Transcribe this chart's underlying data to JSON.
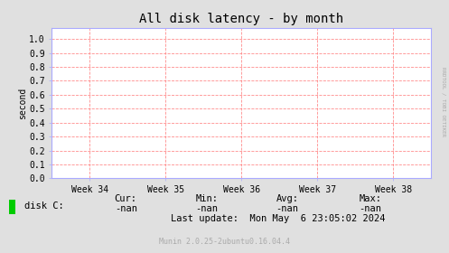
{
  "title": "All disk latency - by month",
  "ylabel": "second",
  "xtick_labels": [
    "Week 34",
    "Week 35",
    "Week 36",
    "Week 37",
    "Week 38"
  ],
  "ytick_values": [
    0.0,
    0.1,
    0.2,
    0.3,
    0.4,
    0.5,
    0.6,
    0.7,
    0.8,
    0.9,
    1.0
  ],
  "ytick_labels": [
    "0.0",
    "0.1",
    "0.2",
    "0.3",
    "0.4",
    "0.5",
    "0.6",
    "0.7",
    "0.8",
    "0.9",
    "1.0"
  ],
  "ylim": [
    0.0,
    1.08
  ],
  "bg_color": "#e0e0e0",
  "plot_bg_color": "#ffffff",
  "grid_color": "#ff8080",
  "spine_color": "#aaaaff",
  "title_fontsize": 10,
  "tick_fontsize": 7,
  "ylabel_fontsize": 7,
  "legend_square_color": "#00cc00",
  "legend_label": "disk C:",
  "cur_label": "Cur:",
  "cur_value": "-nan",
  "min_label": "Min:",
  "min_value": "-nan",
  "avg_label": "Avg:",
  "avg_value": "-nan",
  "max_label": "Max:",
  "max_value": "-nan",
  "last_update_line": "Last update:  Mon May  6 23:05:02 2024",
  "munin_text": "Munin 2.0.25-2ubuntu0.16.04.4",
  "side_text": "RRDTOOL / TOBI OETIKER",
  "side_text_color": "#aaaaaa",
  "munin_text_color": "#aaaaaa",
  "text_color": "#000000"
}
